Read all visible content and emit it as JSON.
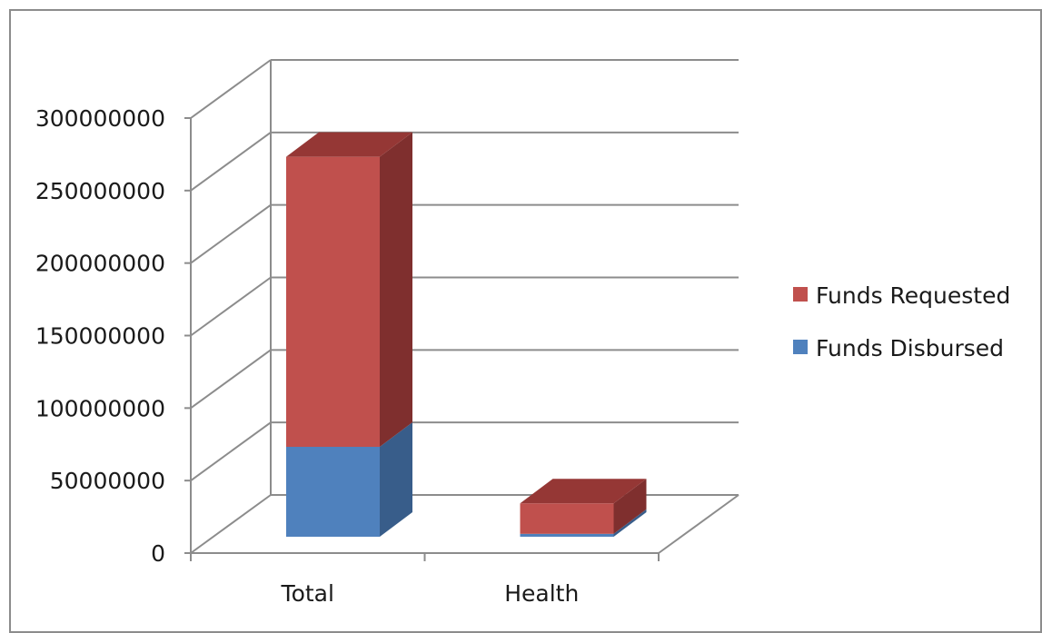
{
  "chart_data": {
    "type": "bar",
    "stacked": true,
    "three_d": true,
    "categories": [
      "Total",
      "Health"
    ],
    "series": [
      {
        "name": "Funds Disbursed",
        "values": [
          62000000,
          2000000
        ],
        "color": "#4f81bd",
        "side_color": "#385d8a",
        "top_color": "#4470a6"
      },
      {
        "name": "Funds Requested",
        "values": [
          200000000,
          21000000
        ],
        "color": "#c0504d",
        "side_color": "#7f2f2e",
        "top_color": "#953735"
      }
    ],
    "ylim": [
      0,
      300000000
    ],
    "yticks": [
      "0",
      "50000000",
      "100000000",
      "150000000",
      "200000000",
      "250000000",
      "300000000"
    ],
    "grid": true,
    "legend_position": "right",
    "legend_order": [
      "Funds Requested",
      "Funds Disbursed"
    ]
  }
}
